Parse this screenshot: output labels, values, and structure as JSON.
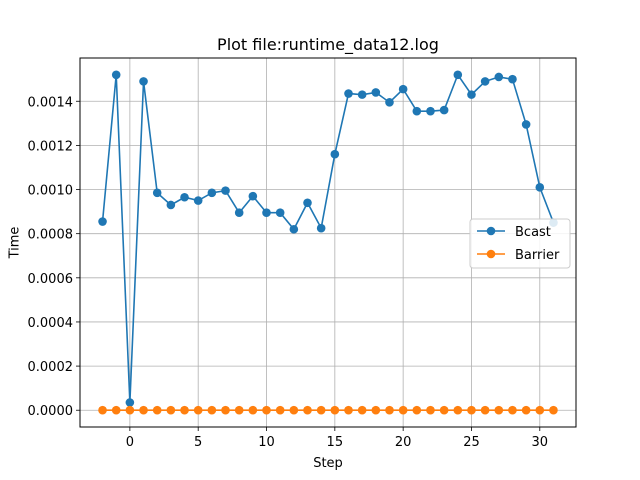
{
  "chart_data": {
    "type": "line",
    "title": "Plot file:runtime_data12.log",
    "xlabel": "Step",
    "ylabel": "Time",
    "xlim": [
      -3.65,
      32.65
    ],
    "ylim": [
      -7.6e-05,
      0.001596
    ],
    "xticks": [
      0,
      5,
      10,
      15,
      20,
      25,
      30
    ],
    "xtick_labels": [
      "0",
      "5",
      "10",
      "15",
      "20",
      "25",
      "30"
    ],
    "yticks": [
      0.0,
      0.0002,
      0.0004,
      0.0006,
      0.0008,
      0.001,
      0.0012,
      0.0014
    ],
    "ytick_labels": [
      "0.0000",
      "0.0002",
      "0.0004",
      "0.0006",
      "0.0008",
      "0.0010",
      "0.0012",
      "0.0014"
    ],
    "grid": true,
    "legend_position": "center-right",
    "x": [
      -2,
      -1,
      0,
      1,
      2,
      3,
      4,
      5,
      6,
      7,
      8,
      9,
      10,
      11,
      12,
      13,
      14,
      15,
      16,
      17,
      18,
      19,
      20,
      21,
      22,
      23,
      24,
      25,
      26,
      27,
      28,
      29,
      30,
      31
    ],
    "series": [
      {
        "name": "Bcast",
        "color": "#1f77b4",
        "values": [
          0.000855,
          0.00152,
          3.5e-05,
          0.00149,
          0.000985,
          0.00093,
          0.000965,
          0.00095,
          0.000985,
          0.000995,
          0.000895,
          0.00097,
          0.000895,
          0.000895,
          0.00082,
          0.00094,
          0.000825,
          0.00116,
          0.001435,
          0.00143,
          0.00144,
          0.001395,
          0.001455,
          0.001355,
          0.001355,
          0.00136,
          0.00152,
          0.00143,
          0.00149,
          0.00151,
          0.0015,
          0.001295,
          0.00101,
          0.00085
        ]
      },
      {
        "name": "Barrier",
        "color": "#ff7f0e",
        "values": [
          0,
          0,
          0,
          0,
          0,
          0,
          0,
          0,
          0,
          0,
          0,
          0,
          0,
          0,
          0,
          0,
          0,
          0,
          0,
          0,
          0,
          0,
          0,
          0,
          0,
          0,
          0,
          0,
          0,
          0,
          0,
          0,
          0,
          0
        ]
      }
    ]
  }
}
